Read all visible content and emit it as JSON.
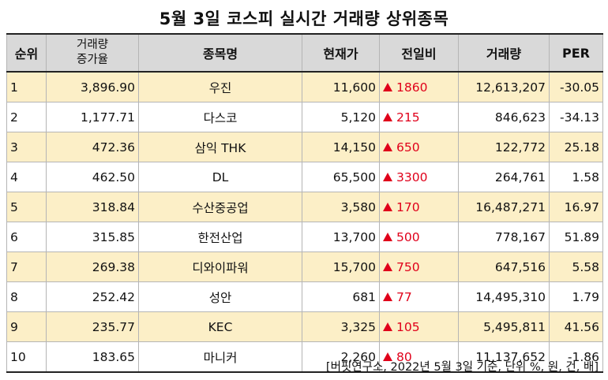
{
  "title": "5월 3일 코스피 실시간 거래량 상위종목",
  "headers": {
    "rank": "순위",
    "growth_line1": "거래량",
    "growth_line2": "증가율",
    "name": "종목명",
    "price": "현재가",
    "change": "전일비",
    "volume": "거래량",
    "per": "PER"
  },
  "rows": [
    {
      "rank": "1",
      "growth": "3,896.90",
      "name": "우진",
      "price": "11,600",
      "change": "1860",
      "volume": "12,613,207",
      "per": "-30.05"
    },
    {
      "rank": "2",
      "growth": "1,177.71",
      "name": "다스코",
      "price": "5,120",
      "change": "215",
      "volume": "846,623",
      "per": "-34.13"
    },
    {
      "rank": "3",
      "growth": "472.36",
      "name": "삼익 THK",
      "price": "14,150",
      "change": "650",
      "volume": "122,772",
      "per": "25.18"
    },
    {
      "rank": "4",
      "growth": "462.50",
      "name": "DL",
      "price": "65,500",
      "change": "3300",
      "volume": "264,761",
      "per": "1.58"
    },
    {
      "rank": "5",
      "growth": "318.84",
      "name": "수산중공업",
      "price": "3,580",
      "change": "170",
      "volume": "16,487,271",
      "per": "16.97"
    },
    {
      "rank": "6",
      "growth": "315.85",
      "name": "한전산업",
      "price": "13,700",
      "change": "500",
      "volume": "778,167",
      "per": "51.89"
    },
    {
      "rank": "7",
      "growth": "269.38",
      "name": "디와이파워",
      "price": "15,700",
      "change": "750",
      "volume": "647,516",
      "per": "5.58"
    },
    {
      "rank": "8",
      "growth": "252.42",
      "name": "성안",
      "price": "681",
      "change": "77",
      "volume": "14,495,310",
      "per": "1.79"
    },
    {
      "rank": "9",
      "growth": "235.77",
      "name": "KEC",
      "price": "3,325",
      "change": "105",
      "volume": "5,495,811",
      "per": "41.56"
    },
    {
      "rank": "10",
      "growth": "183.65",
      "name": "마니커",
      "price": "2,260",
      "change": "80",
      "volume": "11,137,652",
      "per": "-1.86"
    }
  ],
  "change_icon": "triangle-up-icon",
  "colors": {
    "header_bg": "#d9d9d9",
    "highlight_row_bg": "#fcefc7",
    "up_color": "#e0001a"
  },
  "footnote": "[버핏연구소, 2022년 5월 3일 기준, 단위 %, 원, 건, 배]"
}
